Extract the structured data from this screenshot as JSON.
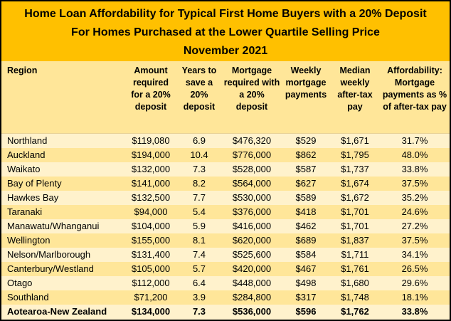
{
  "title": {
    "line1": "Home Loan Affordability for Typical First Home Buyers with a 20% Deposit",
    "line2": "For Homes Purchased at the Lower Quartile Selling Price",
    "line3": "November 2021"
  },
  "colors": {
    "title_bg": "#FFC000",
    "header_bg": "#FFE699",
    "row_light": "#FFF2CC",
    "row_shaded": "#FFE699",
    "border": "#000000",
    "text": "#000000"
  },
  "table": {
    "headers": [
      "Region",
      "Amount required for a 20% deposit",
      "Years to save a 20% deposit",
      "Mortgage required with a 20% deposit",
      "Weekly mortgage payments",
      "Median weekly after-tax pay",
      "Affordability: Mortgage payments as % of after-tax pay"
    ],
    "rows": [
      [
        "Northland",
        "$119,080",
        "6.9",
        "$476,320",
        "$529",
        "$1,671",
        "31.7%"
      ],
      [
        "Auckland",
        "$194,000",
        "10.4",
        "$776,000",
        "$862",
        "$1,795",
        "48.0%"
      ],
      [
        "Waikato",
        "$132,000",
        "7.3",
        "$528,000",
        "$587",
        "$1,737",
        "33.8%"
      ],
      [
        "Bay of Plenty",
        "$141,000",
        "8.2",
        "$564,000",
        "$627",
        "$1,674",
        "37.5%"
      ],
      [
        "Hawkes Bay",
        "$132,500",
        "7.7",
        "$530,000",
        "$589",
        "$1,672",
        "35.2%"
      ],
      [
        "Taranaki",
        "$94,000",
        "5.4",
        "$376,000",
        "$418",
        "$1,701",
        "24.6%"
      ],
      [
        "Manawatu/Whanganui",
        "$104,000",
        "5.9",
        "$416,000",
        "$462",
        "$1,701",
        "27.2%"
      ],
      [
        "Wellington",
        "$155,000",
        "8.1",
        "$620,000",
        "$689",
        "$1,837",
        "37.5%"
      ],
      [
        "Nelson/Marlborough",
        "$131,400",
        "7.4",
        "$525,600",
        "$584",
        "$1,711",
        "34.1%"
      ],
      [
        "Canterbury/Westland",
        "$105,000",
        "5.7",
        "$420,000",
        "$467",
        "$1,761",
        "26.5%"
      ],
      [
        "Otago",
        "$112,000",
        "6.4",
        "$448,000",
        "$498",
        "$1,680",
        "29.6%"
      ],
      [
        "Southland",
        "$71,200",
        "3.9",
        "$284,800",
        "$317",
        "$1,748",
        "18.1%"
      ],
      [
        "Aotearoa-New Zealand",
        "$134,000",
        "7.3",
        "$536,000",
        "$596",
        "$1,762",
        "33.8%"
      ]
    ]
  },
  "chart_data": {
    "type": "table",
    "title": "Home Loan Affordability for Typical First Home Buyers with a 20% Deposit — For Homes Purchased at the Lower Quartile Selling Price — November 2021",
    "columns": [
      "Region",
      "Amount required for a 20% deposit",
      "Years to save a 20% deposit",
      "Mortgage required with a 20% deposit",
      "Weekly mortgage payments",
      "Median weekly after-tax pay",
      "Affordability: Mortgage payments as % of after-tax pay"
    ],
    "rows": [
      [
        "Northland",
        119080,
        6.9,
        476320,
        529,
        1671,
        31.7
      ],
      [
        "Auckland",
        194000,
        10.4,
        776000,
        862,
        1795,
        48.0
      ],
      [
        "Waikato",
        132000,
        7.3,
        528000,
        587,
        1737,
        33.8
      ],
      [
        "Bay of Plenty",
        141000,
        8.2,
        564000,
        627,
        1674,
        37.5
      ],
      [
        "Hawkes Bay",
        132500,
        7.7,
        530000,
        589,
        1672,
        35.2
      ],
      [
        "Taranaki",
        94000,
        5.4,
        376000,
        418,
        1701,
        24.6
      ],
      [
        "Manawatu/Whanganui",
        104000,
        5.9,
        416000,
        462,
        1701,
        27.2
      ],
      [
        "Wellington",
        155000,
        8.1,
        620000,
        689,
        1837,
        37.5
      ],
      [
        "Nelson/Marlborough",
        131400,
        7.4,
        525600,
        584,
        1711,
        34.1
      ],
      [
        "Canterbury/Westland",
        105000,
        5.7,
        420000,
        467,
        1761,
        26.5
      ],
      [
        "Otago",
        112000,
        6.4,
        448000,
        498,
        1680,
        29.6
      ],
      [
        "Southland",
        71200,
        3.9,
        284800,
        317,
        1748,
        18.1
      ],
      [
        "Aotearoa-New Zealand",
        134000,
        7.3,
        536000,
        596,
        1762,
        33.8
      ]
    ],
    "units": {
      "Amount required for a 20% deposit": "NZD",
      "Mortgage required with a 20% deposit": "NZD",
      "Weekly mortgage payments": "NZD/week",
      "Median weekly after-tax pay": "NZD/week",
      "Affordability: Mortgage payments as % of after-tax pay": "%"
    }
  }
}
